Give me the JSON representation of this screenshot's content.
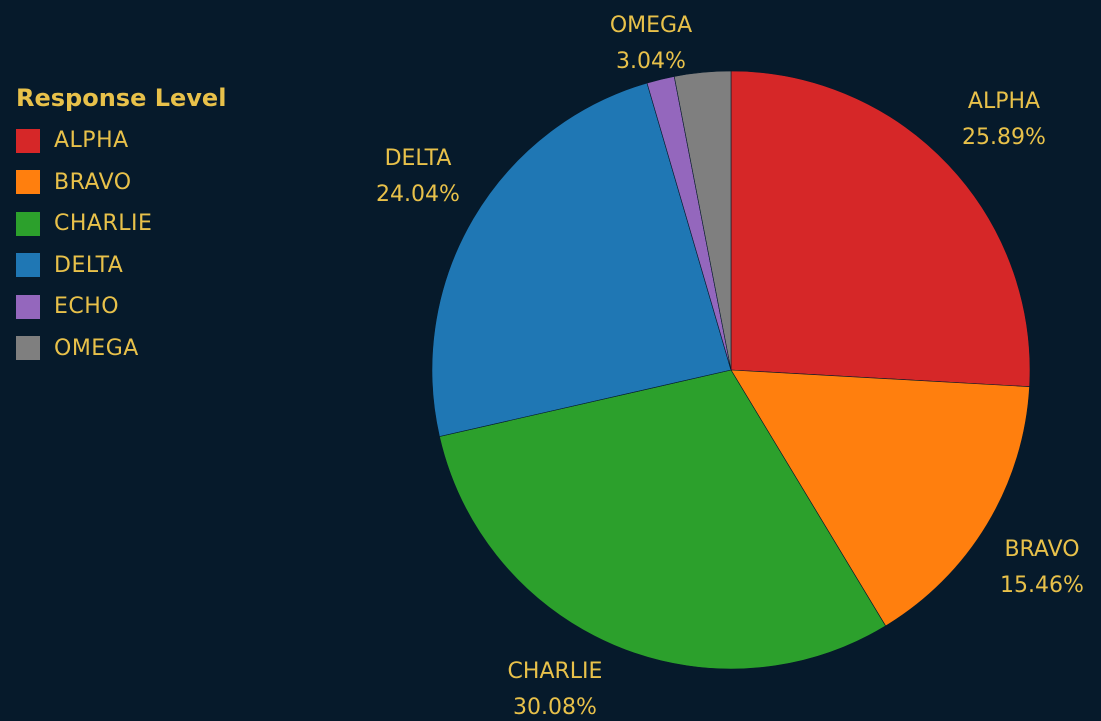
{
  "legend": {
    "title": "Response Level"
  },
  "chart_data": {
    "type": "pie",
    "title": "",
    "legend_position": "top-left",
    "slices": [
      {
        "label": "ALPHA",
        "value": 25.89,
        "display": "25.89%",
        "color": "#d62728",
        "show_label": true
      },
      {
        "label": "BRAVO",
        "value": 15.46,
        "display": "15.46%",
        "color": "#ff7f0e",
        "show_label": true
      },
      {
        "label": "CHARLIE",
        "value": 30.08,
        "display": "30.08%",
        "color": "#2ca02c",
        "show_label": true
      },
      {
        "label": "DELTA",
        "value": 24.04,
        "display": "24.04%",
        "color": "#1f77b4",
        "show_label": true
      },
      {
        "label": "ECHO",
        "value": 1.49,
        "display": "",
        "color": "#9467bd",
        "show_label": false
      },
      {
        "label": "OMEGA",
        "value": 3.04,
        "display": "3.04%",
        "color": "#7f7f7f",
        "show_label": true
      }
    ]
  }
}
